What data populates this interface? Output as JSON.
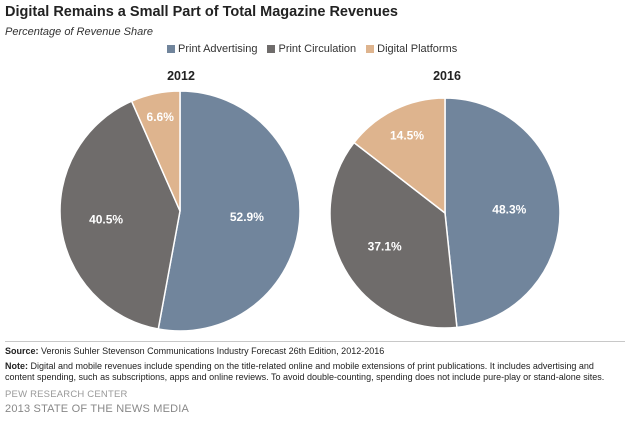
{
  "title": "Digital Remains a Small Part of Total Magazine Revenues",
  "subtitle": "Percentage of Revenue Share",
  "colors": {
    "print_advertising": "#71859c",
    "print_circulation": "#6f6c6b",
    "digital_platforms": "#deb48e"
  },
  "chart_data": [
    {
      "type": "pie",
      "title": "2012",
      "categories": [
        "Print Advertising",
        "Print Circulation",
        "Digital Platforms"
      ],
      "values": [
        52.9,
        40.5,
        6.6
      ],
      "labels": [
        "52.9%",
        "40.5%",
        "6.6%"
      ],
      "legend": "top"
    },
    {
      "type": "pie",
      "title": "2016",
      "categories": [
        "Print Advertising",
        "Print Circulation",
        "Digital Platforms"
      ],
      "values": [
        48.3,
        37.1,
        14.5
      ],
      "labels": [
        "48.3%",
        "37.1%",
        "14.5%"
      ],
      "legend": "top"
    }
  ],
  "legend": [
    "Print Advertising",
    "Print Circulation",
    "Digital Platforms"
  ],
  "footer": {
    "source_label": "Source:",
    "source_text": "Veronis Suhler Stevenson Communications Industry Forecast 26th Edition, 2012-2016",
    "note_label": "Note:",
    "note_text": "Digital and mobile revenues include spending on the title-related online and mobile extensions of print publications. It includes advertising and content spending, such as subscriptions, apps and online reviews. To avoid double-counting, spending does not include pure-play or stand-alone sites.",
    "credit_org": "PEW RESEARCH CENTER",
    "credit_report": "2013 STATE OF THE NEWS MEDIA"
  }
}
